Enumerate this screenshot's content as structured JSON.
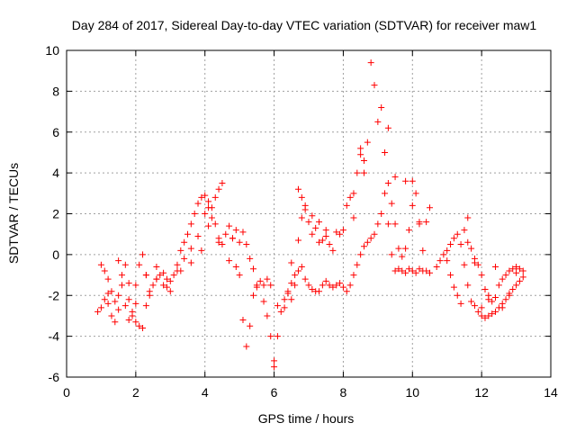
{
  "chart_data": {
    "type": "scatter",
    "title": "Day 284 of 2017, Sidereal Day-to-day VTEC variation (SDTVAR) for receiver maw1",
    "xlabel": "GPS time / hours",
    "ylabel": "SDTVAR / TECUs",
    "xlim": [
      0,
      14
    ],
    "ylim": [
      -6,
      10
    ],
    "xticks": [
      "0",
      "2",
      "4",
      "6",
      "8",
      "10",
      "12",
      "14"
    ],
    "yticks": [
      "-6",
      "-4",
      "-2",
      "0",
      "2",
      "4",
      "6",
      "8",
      "10"
    ],
    "grid": true,
    "marker": "+",
    "series": [
      {
        "name": "SDTVAR",
        "color": "#ff0000",
        "x": [
          0.9,
          1.0,
          1.1,
          1.2,
          1.3,
          1.4,
          1.5,
          1.6,
          1.7,
          1.8,
          1.9,
          2.0,
          2.1,
          2.2,
          2.3,
          2.4,
          2.5,
          2.6,
          2.7,
          2.8,
          2.9,
          3.0,
          3.1,
          3.2,
          3.3,
          3.4,
          3.5,
          3.6,
          3.7,
          3.8,
          3.9,
          4.0,
          4.1,
          4.2,
          4.3,
          4.4,
          4.5,
          4.6,
          4.7,
          4.8,
          4.9,
          5.0,
          5.1,
          5.2,
          5.3,
          5.4,
          5.5,
          5.6,
          5.7,
          5.8,
          5.9,
          6.0,
          6.1,
          6.2,
          6.3,
          6.4,
          6.5,
          6.6,
          6.7,
          6.8,
          6.9,
          7.0,
          7.1,
          7.2,
          7.3,
          7.4,
          7.5,
          7.6,
          7.7,
          7.8,
          7.9,
          8.0,
          8.1,
          8.2,
          8.3,
          8.4,
          8.5,
          8.6,
          8.7,
          8.8,
          8.9,
          9.0,
          9.1,
          9.2,
          9.3,
          9.4,
          9.5,
          9.6,
          9.7,
          9.8,
          9.9,
          10.0,
          10.1,
          10.2,
          10.3,
          10.4,
          10.5,
          10.7,
          10.8,
          10.9,
          11.0,
          11.1,
          11.2,
          11.3,
          11.4,
          11.5,
          11.6,
          11.7,
          11.8,
          11.9,
          12.0,
          12.1,
          12.2,
          12.3,
          12.4,
          12.5,
          12.6,
          12.7,
          12.8,
          12.9,
          13.0,
          13.1,
          13.2,
          1.0,
          1.1,
          1.2,
          1.3,
          1.4,
          1.5,
          1.6,
          1.7,
          1.8,
          1.9,
          2.0,
          2.1,
          2.2,
          2.3,
          2.4,
          2.6,
          2.8,
          3.0,
          3.2,
          3.4,
          3.6,
          3.8,
          4.0,
          4.1,
          4.2,
          4.3,
          4.4,
          4.5,
          4.7,
          4.8,
          4.9,
          5.0,
          5.1,
          5.2,
          5.3,
          5.4,
          5.5,
          5.7,
          5.8,
          5.9,
          6.0,
          6.1,
          6.3,
          6.4,
          6.5,
          6.6,
          6.7,
          6.8,
          6.9,
          7.0,
          7.1,
          7.2,
          7.3,
          7.4,
          7.5,
          7.6,
          7.7,
          7.8,
          7.9,
          8.0,
          8.1,
          8.2,
          8.3,
          8.4,
          8.5,
          8.6,
          8.7,
          8.8,
          8.9,
          9.0,
          9.1,
          9.2,
          9.3,
          9.4,
          9.5,
          9.6,
          9.7,
          9.8,
          9.9,
          10.0,
          10.1,
          10.2,
          10.3,
          10.4,
          10.5,
          11.0,
          11.1,
          11.2,
          11.3,
          11.4,
          11.5,
          11.6,
          11.7,
          11.8,
          11.9,
          12.0,
          12.1,
          12.2,
          12.3,
          12.4,
          12.5,
          12.6,
          12.7,
          12.8,
          12.9,
          13.0,
          13.1,
          13.2,
          1.2,
          1.5,
          1.8,
          2.0,
          2.3,
          2.6,
          2.9,
          3.3,
          3.6,
          3.9,
          4.1,
          4.4,
          6.5,
          6.7,
          6.8,
          6.9,
          7.1,
          7.3,
          7.5,
          8.3,
          8.5,
          8.6,
          9.3,
          9.5,
          9.8,
          10.0,
          10.2,
          11.6,
          11.8,
          12.0,
          12.2,
          12.4,
          12.6,
          12.8,
          13.0
        ],
        "y": [
          -2.8,
          -2.6,
          -2.2,
          -2.4,
          -3.0,
          -3.3,
          -2.0,
          -1.5,
          -2.5,
          -3.2,
          -3.0,
          -3.3,
          -3.5,
          -3.6,
          -2.5,
          -1.8,
          -1.5,
          -1.2,
          -1.0,
          -0.9,
          -1.2,
          -1.3,
          -1.0,
          -0.5,
          0.2,
          0.6,
          1.0,
          1.5,
          2.0,
          2.5,
          2.8,
          2.9,
          2.6,
          2.3,
          2.8,
          3.2,
          3.5,
          1.0,
          1.4,
          0.8,
          -0.6,
          -1.0,
          -3.2,
          -4.5,
          -3.5,
          -2.0,
          -1.5,
          -1.3,
          -1.5,
          -1.2,
          -1.5,
          -5.2,
          -4.0,
          -2.8,
          -2.2,
          -1.8,
          -1.4,
          -1.0,
          -0.8,
          -0.6,
          -1.2,
          -1.5,
          -1.7,
          -1.8,
          -1.8,
          -1.5,
          -1.3,
          -1.5,
          -1.6,
          -1.5,
          -1.4,
          -1.6,
          -1.8,
          -1.5,
          -1.0,
          -0.5,
          0.0,
          0.4,
          0.6,
          0.8,
          1.0,
          1.5,
          2.0,
          3.0,
          1.5,
          0.0,
          -0.8,
          -0.7,
          -0.8,
          -0.9,
          -0.7,
          -0.8,
          -0.9,
          -0.7,
          -0.8,
          -0.8,
          -0.9,
          -0.6,
          -0.3,
          0.0,
          0.2,
          0.5,
          0.8,
          1.0,
          0.5,
          -0.5,
          -1.5,
          -2.3,
          -2.5,
          -2.8,
          -3.0,
          -3.1,
          -3.0,
          -2.9,
          -2.8,
          -2.6,
          -2.4,
          -2.2,
          -1.9,
          -1.7,
          -1.5,
          -1.3,
          -1.1,
          -0.5,
          -0.8,
          -1.2,
          -1.8,
          -2.3,
          -2.7,
          -1.0,
          -0.5,
          -2.2,
          -2.8,
          -1.5,
          -0.5,
          0.0,
          -1.0,
          -2.0,
          -1.2,
          -1.5,
          -1.8,
          -0.8,
          -0.2,
          0.3,
          0.9,
          2.0,
          2.3,
          1.8,
          1.5,
          0.8,
          0.5,
          -0.3,
          0.8,
          1.2,
          0.6,
          1.1,
          0.5,
          -0.2,
          -0.7,
          -1.6,
          -2.3,
          -3.0,
          -4.0,
          -5.5,
          -2.5,
          -2.6,
          -1.9,
          -2.2,
          -1.5,
          3.2,
          2.8,
          2.2,
          1.6,
          1.0,
          1.3,
          1.6,
          0.7,
          1.2,
          0.5,
          0.2,
          1.1,
          1.0,
          1.2,
          2.4,
          2.8,
          3.0,
          4.0,
          4.9,
          4.0,
          5.5,
          9.4,
          8.3,
          6.5,
          7.2,
          5.0,
          3.5,
          2.5,
          1.5,
          0.3,
          -0.1,
          0.3,
          1.2,
          3.6,
          3.0,
          1.5,
          0.2,
          1.6,
          2.3,
          -0.3,
          -1.0,
          -1.6,
          -2.0,
          -2.4,
          1.2,
          0.6,
          0.3,
          -0.2,
          -0.5,
          -1.0,
          -1.7,
          -2.0,
          -2.3,
          -2.1,
          -1.5,
          -1.2,
          -1.0,
          -0.8,
          -0.7,
          -0.6,
          -0.7,
          -0.8,
          -1.9,
          -0.3,
          -1.4,
          -2.4,
          -1.0,
          -0.6,
          -1.6,
          -0.8,
          -0.4,
          0.2,
          1.4,
          0.6,
          -0.4,
          0.7,
          1.8,
          2.4,
          1.9,
          0.6,
          0.9,
          1.8,
          5.2,
          4.6,
          6.2,
          3.8,
          3.6,
          2.4,
          1.6,
          1.8,
          -0.4,
          -2.6,
          -2.2,
          -0.6,
          -2.6,
          -2.0,
          -0.9
        ]
      }
    ]
  }
}
